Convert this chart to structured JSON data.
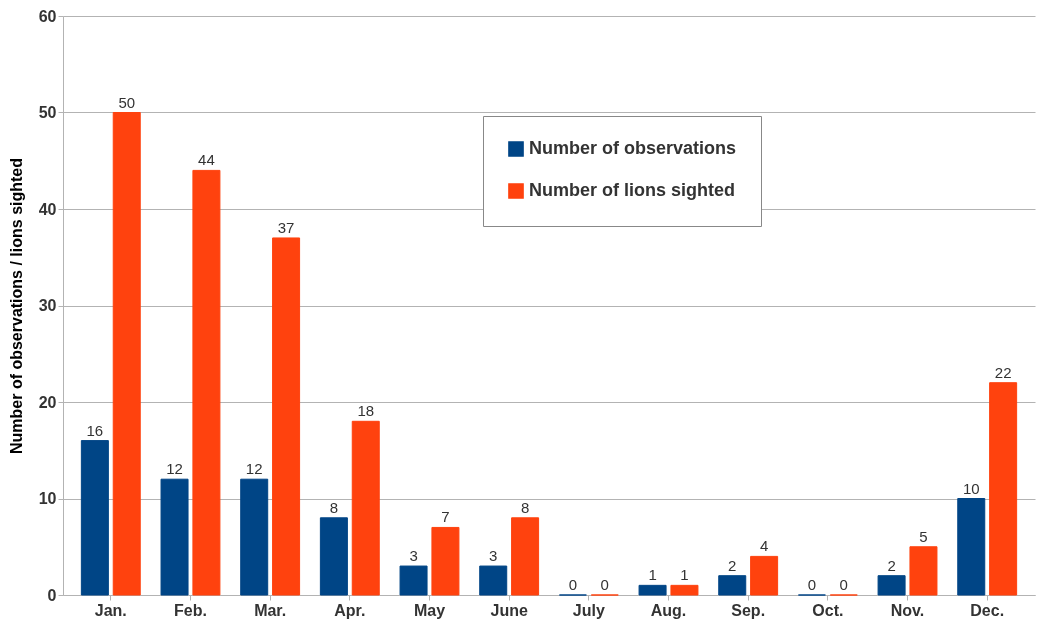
{
  "chart_data": {
    "type": "bar",
    "ylabel": "Number of observations / lions sighted",
    "categories": [
      "Jan.",
      "Feb.",
      "Mar.",
      "Apr.",
      "May",
      "June",
      "July",
      "Aug.",
      "Sep.",
      "Oct.",
      "Nov.",
      "Dec."
    ],
    "series": [
      {
        "name": "Number of observations",
        "color": "#004586",
        "values": [
          16,
          12,
          12,
          8,
          3,
          3,
          0,
          1,
          2,
          0,
          2,
          10
        ]
      },
      {
        "name": "Number of lions sighted",
        "color": "#ff420e",
        "values": [
          50,
          44,
          37,
          18,
          7,
          8,
          0,
          1,
          4,
          0,
          5,
          22
        ]
      }
    ],
    "ylim": [
      0,
      60
    ],
    "yticks": [
      0,
      10,
      20,
      30,
      40,
      50,
      60
    ],
    "grid": "y",
    "legend": "top right",
    "data_labels": true
  }
}
